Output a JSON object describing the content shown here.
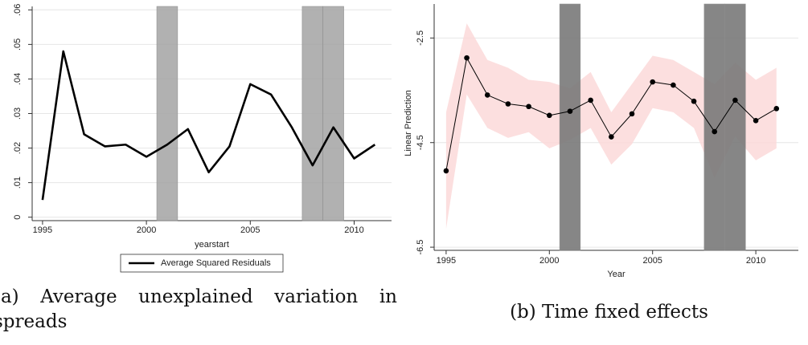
{
  "chart_data": [
    {
      "type": "line",
      "caption": "(a) Average unexplained variation in spreads",
      "x_label": "yearstart",
      "x": [
        1995,
        1996,
        1997,
        1998,
        1999,
        2000,
        2001,
        2002,
        2003,
        2004,
        2005,
        2006,
        2007,
        2008,
        2009,
        2010,
        2011
      ],
      "series": [
        {
          "name": "Average Squared Residuals",
          "color": "#000000",
          "values": [
            0.005,
            0.048,
            0.024,
            0.0205,
            0.021,
            0.0175,
            0.021,
            0.0255,
            0.013,
            0.0205,
            0.0385,
            0.0355,
            0.026,
            0.015,
            0.026,
            0.017,
            0.021
          ]
        }
      ],
      "xlim": [
        1994.5,
        2011.8
      ],
      "ylim": [
        -0.001,
        0.061
      ],
      "xticks": [
        1995,
        2000,
        2005,
        2010
      ],
      "yticks": [
        0,
        {
          "value": 0.01,
          "label": ".01"
        },
        {
          "value": 0.02,
          "label": ".02"
        },
        {
          "value": 0.03,
          "label": ".03"
        },
        {
          "value": 0.04,
          "label": ".04"
        },
        {
          "value": 0.05,
          "label": ".05"
        },
        {
          "value": 0.06,
          "label": ".06"
        }
      ],
      "shaded_regions": [
        [
          2000.5,
          2001.5
        ],
        [
          2007.5,
          2008.5
        ],
        [
          2008.5,
          2009.5
        ]
      ],
      "shade_color": "#a9a9a9",
      "grid": true,
      "legend": "bottom",
      "markers": false
    },
    {
      "type": "line",
      "caption": "(b) Time fixed effects",
      "x_label": "Year",
      "y_label": "Linear Prediction",
      "x": [
        1995,
        1996,
        1997,
        1998,
        1999,
        2000,
        2001,
        2002,
        2003,
        2004,
        2005,
        2006,
        2007,
        2008,
        2009,
        2010,
        2011
      ],
      "series": [
        {
          "color": "#000000",
          "band_color": "#fbd9d9",
          "values": [
            -5.04,
            -2.88,
            -3.59,
            -3.76,
            -3.81,
            -3.98,
            -3.9,
            -3.69,
            -4.39,
            -3.95,
            -3.34,
            -3.4,
            -3.71,
            -4.29,
            -3.69,
            -4.08,
            -3.85
          ],
          "ci_upper": [
            -3.92,
            -2.22,
            -2.92,
            -3.07,
            -3.3,
            -3.34,
            -3.46,
            -3.15,
            -3.92,
            -3.38,
            -2.84,
            -2.92,
            -3.15,
            -3.38,
            -2.97,
            -3.3,
            -3.07
          ],
          "ci_lower": [
            -6.15,
            -3.58,
            -4.22,
            -4.41,
            -4.3,
            -4.61,
            -4.45,
            -4.22,
            -4.92,
            -4.53,
            -3.84,
            -3.92,
            -4.22,
            -5.18,
            -4.38,
            -4.84,
            -4.61
          ]
        }
      ],
      "xlim": [
        1994.42,
        2012.06
      ],
      "ylim": [
        -6.56,
        -1.85
      ],
      "xticks": [
        1995,
        2000,
        2005,
        2010
      ],
      "yticks": [
        -2.5,
        -4.5,
        -6.5
      ],
      "shaded_regions": [
        [
          2000.5,
          2001.5
        ],
        [
          2007.5,
          2008.5
        ],
        [
          2008.5,
          2009.5
        ]
      ],
      "shade_color": "#7a7a7a",
      "grid": true,
      "markers": true
    }
  ]
}
